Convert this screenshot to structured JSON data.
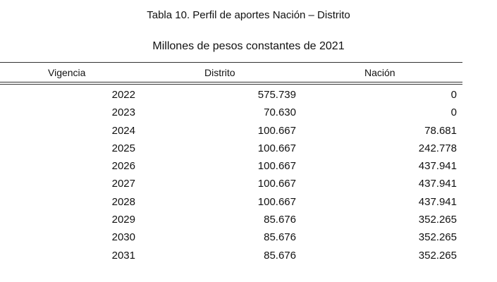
{
  "title": "Tabla 10. Perfil de aportes Nación – Distrito",
  "subtitle": "Millones de pesos constantes de 2021",
  "table": {
    "headers": [
      "Vigencia",
      "Distrito",
      "Nación"
    ],
    "rows": [
      [
        "2022",
        "575.739",
        "0"
      ],
      [
        "2023",
        "70.630",
        "0"
      ],
      [
        "2024",
        "100.667",
        "78.681"
      ],
      [
        "2025",
        "100.667",
        "242.778"
      ],
      [
        "2026",
        "100.667",
        "437.941"
      ],
      [
        "2027",
        "100.667",
        "437.941"
      ],
      [
        "2028",
        "100.667",
        "437.941"
      ],
      [
        "2029",
        "85.676",
        "352.265"
      ],
      [
        "2030",
        "85.676",
        "352.265"
      ],
      [
        "2031",
        "85.676",
        "352.265"
      ]
    ]
  }
}
